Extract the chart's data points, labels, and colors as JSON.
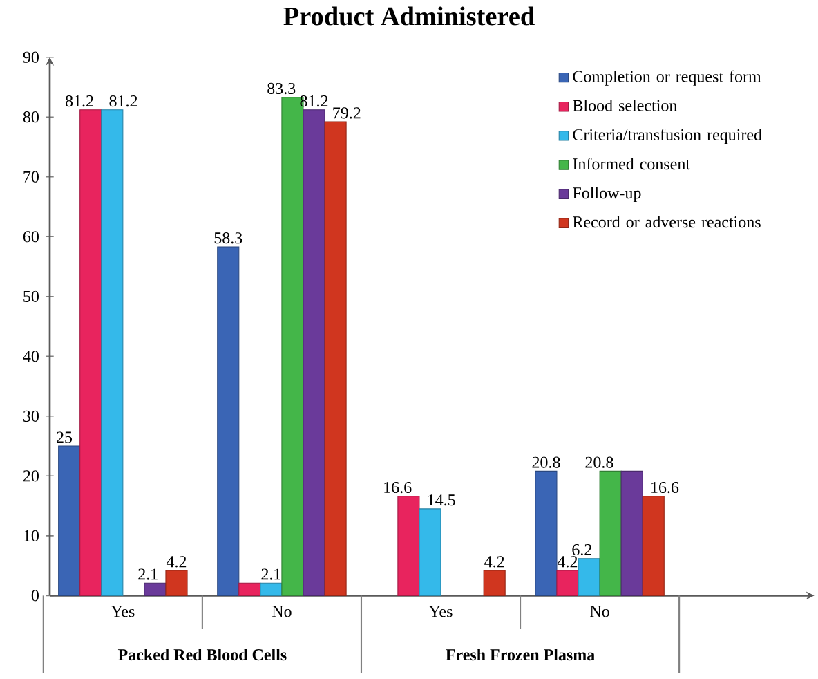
{
  "chart_data": {
    "type": "bar",
    "title": "Product Administered",
    "categories": [
      "Yes",
      "No",
      "Yes",
      "No"
    ],
    "annotations": [
      "Packed Red Blood Cells",
      "Fresh Frozen Plasma"
    ],
    "series": [
      {
        "name": "Completion or request form",
        "color": "#3a65b5",
        "values": [
          25,
          58.3,
          null,
          20.8
        ],
        "value_labels": [
          "25",
          "58.3",
          null,
          "20.8"
        ]
      },
      {
        "name": "Blood selection",
        "color": "#e8245e",
        "values": [
          81.2,
          2.1,
          16.6,
          4.2
        ],
        "value_labels": [
          "81.2",
          null,
          "16.6",
          "4.2"
        ]
      },
      {
        "name": "Criteria/transfusion required",
        "color": "#34b9ea",
        "values": [
          81.2,
          2.1,
          14.5,
          6.2
        ],
        "value_labels": [
          "81.2",
          "2.1",
          "14.5",
          "6.2"
        ]
      },
      {
        "name": "Informed consent",
        "color": "#44b649",
        "values": [
          null,
          83.3,
          null,
          20.8
        ],
        "value_labels": [
          null,
          "83.3",
          null,
          "20.8"
        ]
      },
      {
        "name": "Follow-up",
        "color": "#6a3a9a",
        "values": [
          2.1,
          81.2,
          null,
          20.8
        ],
        "value_labels": [
          "2.1",
          "81.2",
          null,
          null
        ]
      },
      {
        "name": "Record or adverse reactions",
        "color": "#d0361f",
        "values": [
          4.2,
          79.2,
          4.2,
          16.6
        ],
        "value_labels": [
          "4.2",
          "79.2",
          "4.2",
          "16.6"
        ]
      }
    ],
    "ylim": [
      0,
      90
    ],
    "yticks": [
      0,
      10,
      20,
      30,
      40,
      50,
      60,
      70,
      80,
      90
    ],
    "grid": false,
    "legend": "top right"
  }
}
